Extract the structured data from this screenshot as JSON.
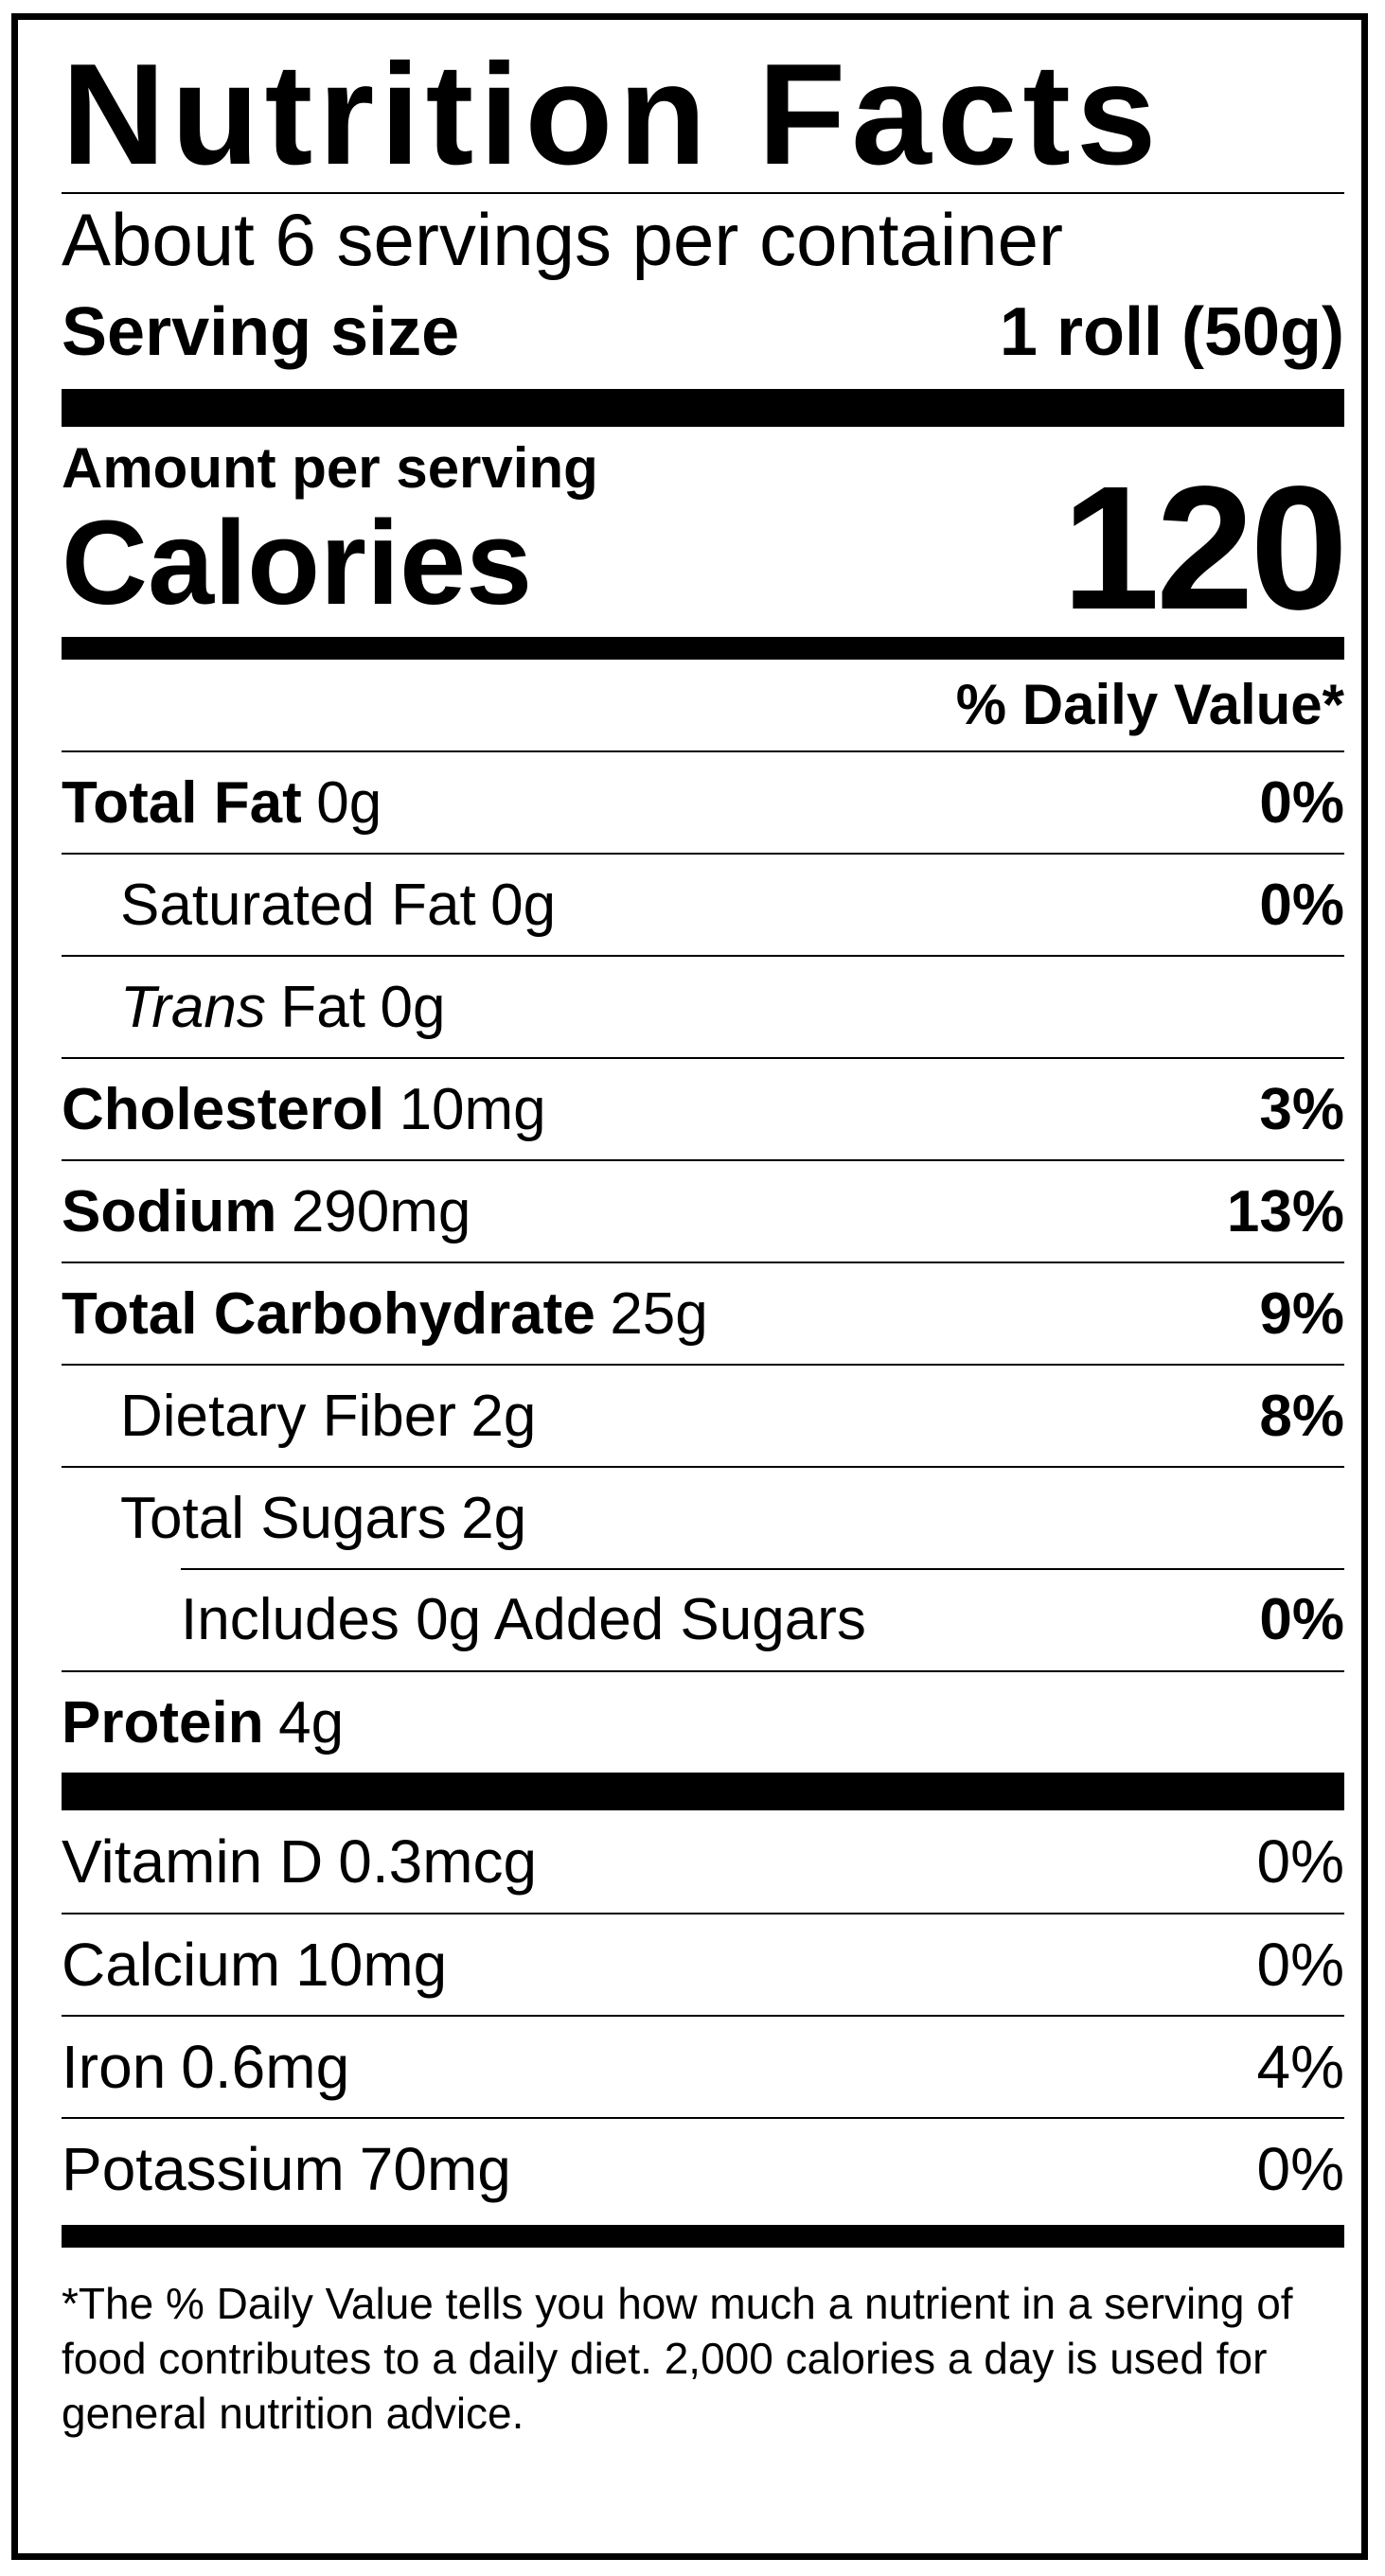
{
  "title": "Nutrition Facts",
  "servings_per_container": "About 6 servings per container",
  "serving_size": {
    "label": "Serving size",
    "value": "1 roll (50g)"
  },
  "amount_per_serving": "Amount per serving",
  "calories": {
    "label": "Calories",
    "value": "120"
  },
  "daily_value_header": "% Daily Value*",
  "nutrients": {
    "total_fat": {
      "name": "Total Fat",
      "amount": "0g",
      "dv": "0%"
    },
    "saturated_fat": {
      "name": "Saturated Fat",
      "amount": "0g",
      "dv": "0%"
    },
    "trans_fat": {
      "name_italic": "Trans",
      "name_rest": "Fat",
      "amount": "0g"
    },
    "cholesterol": {
      "name": "Cholesterol",
      "amount": "10mg",
      "dv": "3%"
    },
    "sodium": {
      "name": "Sodium",
      "amount": "290mg",
      "dv": "13%"
    },
    "total_carbohydrate": {
      "name": "Total Carbohydrate",
      "amount": "25g",
      "dv": "9%"
    },
    "dietary_fiber": {
      "name": "Dietary Fiber",
      "amount": "2g",
      "dv": "8%"
    },
    "total_sugars": {
      "name": "Total Sugars",
      "amount": "2g"
    },
    "added_sugars": {
      "label": "Includes 0g Added Sugars",
      "dv": "0%"
    },
    "protein": {
      "name": "Protein",
      "amount": "4g"
    }
  },
  "vitamins": [
    {
      "name": "Vitamin D",
      "amount": "0.3mcg",
      "dv": "0%"
    },
    {
      "name": "Calcium",
      "amount": "10mg",
      "dv": "0%"
    },
    {
      "name": "Iron",
      "amount": "0.6mg",
      "dv": "4%"
    },
    {
      "name": "Potassium",
      "amount": "70mg",
      "dv": "0%"
    }
  ],
  "footnote": "*The % Daily Value tells you how much a nutrient in a serving of food contributes to a daily diet. 2,000 calories a day is used for general nutrition advice."
}
